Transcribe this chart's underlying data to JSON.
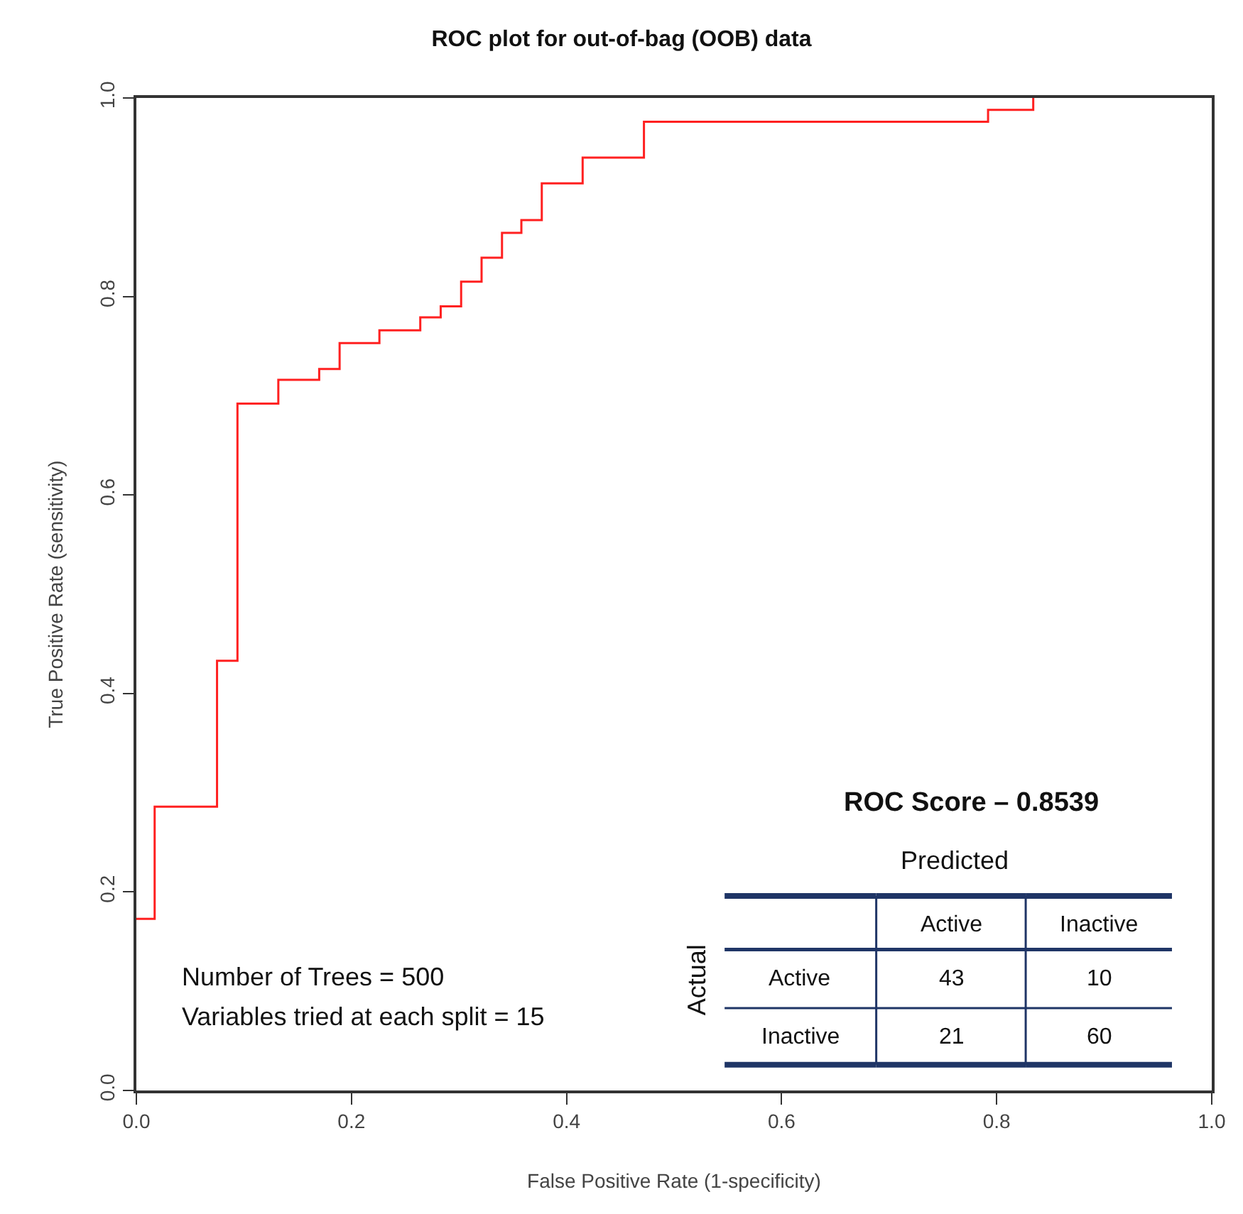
{
  "chart_data": {
    "type": "step",
    "title": "ROC plot for out-of-bag (OOB) data",
    "xlabel": "False Positive Rate (1-specificity)",
    "ylabel": "True Positive Rate (sensitivity)",
    "x": [
      0,
      0.017,
      0.075,
      0.094,
      0.132,
      0.17,
      0.189,
      0.226,
      0.264,
      0.283,
      0.302,
      0.321,
      0.34,
      0.358,
      0.377,
      0.415,
      0.472,
      0.792,
      0.834
    ],
    "series": [
      {
        "color": "#ff2020",
        "values": [
          0.173,
          0.286,
          0.433,
          0.692,
          0.716,
          0.727,
          0.753,
          0.766,
          0.779,
          0.79,
          0.815,
          0.839,
          0.864,
          0.877,
          0.914,
          0.94,
          0.976,
          0.988,
          1.0
        ]
      }
    ],
    "xlim": [
      0,
      1
    ],
    "ylim": [
      0,
      1
    ],
    "xticks": [
      {
        "value": 0,
        "label": "0.0"
      },
      0.2,
      0.4,
      0.6,
      0.8,
      {
        "value": 1,
        "label": "1.0"
      }
    ],
    "yticks": [
      {
        "value": 0,
        "label": "0.0"
      },
      0.2,
      0.4,
      0.6,
      0.8,
      {
        "value": 1,
        "label": "1.0"
      }
    ],
    "marker": "none",
    "line_style": "solid",
    "annotations": [
      "Number of Trees = 500",
      "Variables tried at each split = 15",
      "ROC Score – 0.8539",
      "Predicted",
      "Actual",
      "Active",
      "Inactive",
      "Active",
      "43",
      "10",
      "Inactive",
      "21",
      "60"
    ]
  }
}
